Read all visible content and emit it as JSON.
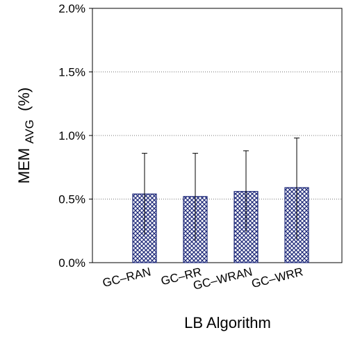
{
  "chart_data": {
    "type": "bar",
    "title": "",
    "xlabel": "LB Algorithm",
    "ylabel_main": "MEM",
    "ylabel_sub": "AVG",
    "ylabel_suffix": "(%)",
    "categories": [
      "GC–RAN",
      "GC–RR",
      "GC–WRAN",
      "GC–WRR"
    ],
    "values": [
      0.54,
      0.52,
      0.56,
      0.59
    ],
    "error_low": [
      0.22,
      0.17,
      0.24,
      0.18
    ],
    "error_high": [
      0.86,
      0.86,
      0.88,
      0.98
    ],
    "ylim": [
      0,
      2.0
    ],
    "yticks": [
      0,
      0.5,
      1.0,
      1.5,
      2.0
    ],
    "ytick_labels": [
      "0.0%",
      "0.5%",
      "1.0%",
      "1.5%",
      "2.0%"
    ],
    "grid": true,
    "legend": "none",
    "bar_color": "#1f2a7a",
    "bar_pattern": "crosshatch"
  }
}
